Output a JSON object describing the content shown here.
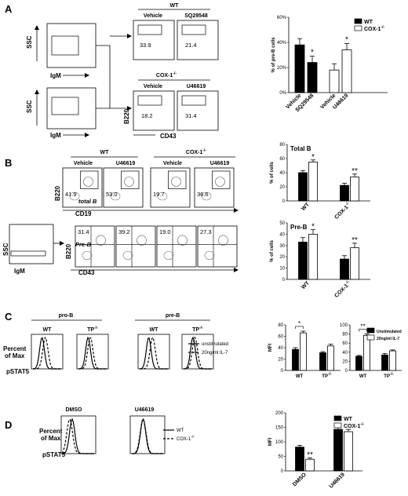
{
  "panels": {
    "A": {
      "label": "A",
      "ssc": "SSC",
      "igm": "IgM",
      "b220": "B220",
      "cd43": "CD43",
      "wt_header": "WT",
      "cox_header": "COX-1",
      "vehicle": "Vehicle",
      "sq": "SQ29548",
      "u466": "U46619",
      "vals": [
        "33.9",
        "21.4",
        "18.2",
        "31.4"
      ]
    },
    "B": {
      "label": "B",
      "wt_header": "WT",
      "cox_header": "COX-1",
      "vehicle": "Vehicle",
      "u466": "U46619",
      "b220": "B220",
      "cd19": "CD19",
      "cd43": "CD43",
      "ssc": "SSC",
      "igm": "IgM",
      "total_b": "total B",
      "pre_b": "Pre-B",
      "top_vals": [
        "41.9",
        "53.0",
        "19.7",
        "36.6"
      ],
      "bot_vals": [
        "31.4",
        "39.2",
        "19.0",
        "27.3"
      ]
    },
    "C": {
      "label": "C",
      "pro_b": "pro-B",
      "pre_b": "pre-B",
      "wt": "WT",
      "tp": "TP",
      "ylab1": "Percent",
      "ylab2": "of Max",
      "xlab": "pSTAT5",
      "leg_unstim": "unstimulated",
      "leg_il7": "20ng/ml IL-7"
    },
    "D": {
      "label": "D",
      "dmso": "DMSO",
      "u466": "U46619",
      "ylab1": "Percent",
      "ylab2": "of Max",
      "xlab": "pSTAT5",
      "leg_wt": "WT",
      "leg_cox": "COX-1"
    }
  },
  "chart_data": [
    {
      "id": "A-bar",
      "type": "bar",
      "ylabel": "% of pre-B cells",
      "ylim": [
        0,
        60
      ],
      "yticks": [
        0,
        20,
        40,
        60
      ],
      "tick_suffix": "%",
      "categories": [
        "Vehicle",
        "SQ29548",
        "Vehicle",
        "U46619"
      ],
      "series": [
        {
          "name": "WT",
          "color": "#000000",
          "values": [
            38,
            24,
            null,
            null
          ],
          "err": [
            5,
            5,
            null,
            null
          ]
        },
        {
          "name": "COX-1",
          "color": "#ffffff",
          "values": [
            null,
            null,
            18,
            34
          ],
          "err": [
            null,
            null,
            5,
            5
          ]
        }
      ],
      "legend": [
        "WT",
        "COX-1"
      ],
      "sig": [
        "",
        "*",
        "",
        "*"
      ]
    },
    {
      "id": "B-total",
      "type": "bar",
      "title": "Total B",
      "ylabel": "% of cells",
      "ylim": [
        0,
        80
      ],
      "yticks": [
        0,
        20,
        40,
        60,
        80
      ],
      "categories": [
        "WT",
        "COX-1"
      ],
      "series": [
        {
          "name": "Vehicle",
          "color": "#000000",
          "values": [
            40,
            22
          ],
          "err": [
            3,
            3
          ]
        },
        {
          "name": "U46619",
          "color": "#ffffff",
          "values": [
            55,
            34
          ],
          "err": [
            3,
            4
          ]
        }
      ],
      "sig": [
        "*",
        "**"
      ]
    },
    {
      "id": "B-preb",
      "type": "bar",
      "title": "Pre-B",
      "ylabel": "% of cells",
      "ylim": [
        0,
        50
      ],
      "yticks": [
        0,
        10,
        20,
        30,
        40,
        50
      ],
      "categories": [
        "WT",
        "COX-1"
      ],
      "series": [
        {
          "name": "Vehicle",
          "color": "#000000",
          "values": [
            33,
            18
          ],
          "err": [
            4,
            3
          ]
        },
        {
          "name": "U46619",
          "color": "#ffffff",
          "values": [
            40,
            28
          ],
          "err": [
            4,
            4
          ]
        }
      ],
      "sig": [
        "*",
        "**"
      ]
    },
    {
      "id": "C-prob",
      "type": "bar",
      "ylabel": "MFI",
      "ylim": [
        0,
        80
      ],
      "yticks": [
        0,
        20,
        40,
        60,
        80
      ],
      "categories": [
        "WT",
        "TP"
      ],
      "series": [
        {
          "name": "Unstimulated",
          "color": "#000000",
          "values": [
            37,
            31
          ],
          "err": [
            3,
            2
          ]
        },
        {
          "name": "20ng/ml IL-7",
          "color": "#ffffff",
          "values": [
            66,
            43
          ],
          "err": [
            3,
            3
          ]
        }
      ],
      "sig": [
        "*",
        ""
      ]
    },
    {
      "id": "C-preb",
      "type": "bar",
      "ylim": [
        0,
        100
      ],
      "yticks": [
        0,
        20,
        40,
        60,
        80,
        100
      ],
      "categories": [
        "WT",
        "TP"
      ],
      "series": [
        {
          "name": "Unstimulated",
          "color": "#000000",
          "values": [
            31,
            34
          ],
          "err": [
            2,
            3
          ]
        },
        {
          "name": "20ng/ml IL-7",
          "color": "#ffffff",
          "values": [
            77,
            43
          ],
          "err": [
            3,
            2
          ]
        }
      ],
      "legend": [
        "Unstimulated",
        "20ng/ml IL-7"
      ],
      "sig": [
        "**",
        ""
      ]
    },
    {
      "id": "D-bar",
      "type": "bar",
      "ylabel": "MFI",
      "ylim": [
        0,
        200
      ],
      "yticks": [
        0,
        50,
        100,
        150,
        200
      ],
      "categories": [
        "DMSO",
        "U46619"
      ],
      "series": [
        {
          "name": "WT",
          "color": "#000000",
          "values": [
            82,
            143
          ],
          "err": [
            6,
            7
          ]
        },
        {
          "name": "COX-1",
          "color": "#ffffff",
          "values": [
            40,
            135
          ],
          "err": [
            5,
            8
          ]
        }
      ],
      "legend": [
        "WT",
        "COX-1"
      ],
      "sig": [
        "**",
        ""
      ]
    }
  ]
}
